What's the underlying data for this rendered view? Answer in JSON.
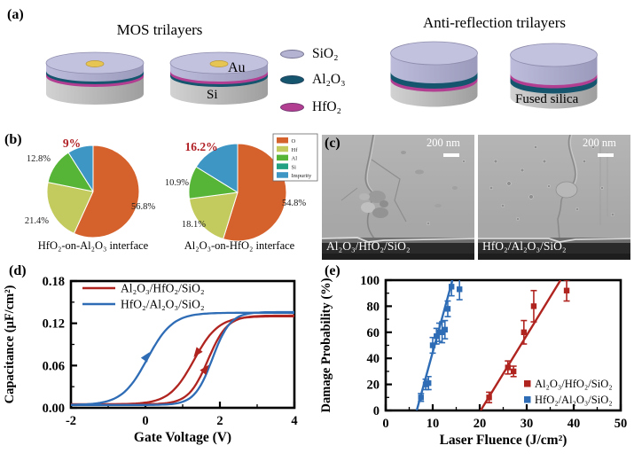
{
  "panels": {
    "a": {
      "label": "(a)",
      "mos_title": "MOS trilayers",
      "ar_title": "Anti-reflection trilayers",
      "au_label": "Au",
      "si_label": "Si",
      "fused_silica_label": "Fused silica",
      "materials": {
        "SiO2": {
          "label": "SiO₂",
          "color": "#b4b3d2",
          "top_color": "#c2c1de"
        },
        "Al2O3": {
          "label": "Al₂O₃",
          "color": "#15566e"
        },
        "HfO2": {
          "label": "HfO₂",
          "color": "#b23e92"
        }
      },
      "substrate_color": "#bdbdbd",
      "au_color": "#e7c553",
      "discs": [
        {
          "id": "mos1",
          "layers": [
            "SiO2",
            "Al2O3",
            "HfO2"
          ],
          "au": true
        },
        {
          "id": "mos2",
          "layers": [
            "SiO2",
            "HfO2",
            "Al2O3"
          ],
          "au": true
        },
        {
          "id": "ar1",
          "layers": [
            "SiO2",
            "Al2O3",
            "HfO2"
          ],
          "au": false
        },
        {
          "id": "ar2",
          "layers": [
            "SiO2",
            "HfO2",
            "Al2O3"
          ],
          "au": false
        }
      ]
    },
    "b": {
      "label": "(b)"
    },
    "c": {
      "label": "(c)",
      "images": [
        {
          "label": "Al₂O₃/HfO₂/SiO₂",
          "scale_label": "200 nm"
        },
        {
          "label": "HfO₂/Al₂O₃/SiO₂",
          "scale_label": "200 nm"
        }
      ]
    },
    "d": {
      "label": "(d)"
    },
    "e": {
      "label": "(e)"
    }
  },
  "chart_data": [
    {
      "id": "pie-hfo2-on-al2o3",
      "type": "pie",
      "title": "HfO₂-on-Al₂O₃ interface",
      "labels": [
        "O",
        "Hf",
        "Al",
        "Impurity"
      ],
      "values": [
        56.8,
        21.4,
        12.8,
        9.0
      ],
      "value_labels": [
        "56.8%",
        "21.4%",
        "12.8%",
        "9%"
      ],
      "colors": [
        "#d5622d",
        "#c3cb5f",
        "#56b436",
        "#3e96c5"
      ],
      "highlight_index": 3,
      "highlight_color": "#b01f24",
      "legend_labels": [
        "O",
        "Hf",
        "Al",
        "Si",
        "Impurity"
      ],
      "legend_colors": [
        "#d5622d",
        "#c3cb5f",
        "#56b436",
        "#23a283",
        "#3e96c5"
      ]
    },
    {
      "id": "pie-al2o3-on-hfo2",
      "type": "pie",
      "title": "Al₂O₃-on-HfO₂ interface",
      "labels": [
        "O",
        "Hf",
        "Al",
        "Impurity"
      ],
      "values": [
        54.8,
        18.1,
        10.9,
        16.2
      ],
      "value_labels": [
        "54.8%",
        "18.1%",
        "10.9%",
        "16.2%"
      ],
      "colors": [
        "#d5622d",
        "#c3cb5f",
        "#56b436",
        "#3e96c5"
      ],
      "highlight_index": 3,
      "highlight_color": "#b01f24"
    },
    {
      "id": "cv-hysteresis",
      "type": "line",
      "xlabel": "Gate Voltage (V)",
      "ylabel": "Capacitance (μF/cm²)",
      "xlim": [
        -2,
        4
      ],
      "ylim": [
        0,
        0.18
      ],
      "xticks": [
        -2,
        0,
        2,
        4
      ],
      "xtick_labels": [
        "-2",
        "0",
        "2",
        "4"
      ],
      "yticks": [
        0,
        0.06,
        0.12,
        0.18
      ],
      "ytick_labels": [
        "0.00",
        "0.06",
        "0.12",
        "0.18"
      ],
      "grid": false,
      "legend_position": "top-left",
      "series": [
        {
          "name": "Al₂O₃/HfO₂/SiO₂",
          "color": "#b02420",
          "branches": [
            {
              "v0": 1.3,
              "w": 0.33,
              "cmin": 0.005,
              "cmax": 0.13
            },
            {
              "v0": 1.68,
              "w": 0.26,
              "cmin": 0.005,
              "cmax": 0.131
            }
          ]
        },
        {
          "name": "HfO₂/Al₂O₃/SiO₂",
          "color": "#2e6cb5",
          "branches": [
            {
              "v0": 0.05,
              "w": 0.34,
              "cmin": 0.004,
              "cmax": 0.135
            },
            {
              "v0": 1.8,
              "w": 0.24,
              "cmin": 0.004,
              "cmax": 0.136
            }
          ]
        }
      ],
      "arrows": [
        {
          "x": 0.1,
          "y": 0.078,
          "angle": -55,
          "series": 1
        },
        {
          "x": 1.31,
          "y": 0.073,
          "angle": 128,
          "series": 0
        },
        {
          "x": 1.69,
          "y": 0.06,
          "angle": -52,
          "series": 0
        }
      ]
    },
    {
      "id": "damage-probability",
      "type": "scatter",
      "xlabel": "Laser Fluence (J/cm²)",
      "ylabel": "Damage Probability (%)",
      "xlim": [
        0,
        50
      ],
      "ylim": [
        0,
        100
      ],
      "xticks": [
        0,
        10,
        20,
        30,
        40,
        50
      ],
      "yticks": [
        0,
        20,
        40,
        60,
        80,
        100
      ],
      "grid": false,
      "legend_position": "right-bottom",
      "series": [
        {
          "name": "Al₂O₃/HfO₂/SiO₂",
          "color": "#b02420",
          "points": [
            [
              22,
              10,
              4
            ],
            [
              26,
              33,
              5
            ],
            [
              27.2,
              30,
              4
            ],
            [
              29.4,
              60,
              9
            ],
            [
              31.5,
              80,
              12
            ],
            [
              38.5,
              92,
              8
            ]
          ],
          "fit_line": [
            [
              20.2,
              0
            ],
            [
              37.2,
              100
            ]
          ]
        },
        {
          "name": "HfO₂/Al₂O₃/SiO₂",
          "color": "#2e6cb5",
          "points": [
            [
              7.5,
              10,
              3
            ],
            [
              8.5,
              20,
              4
            ],
            [
              9.1,
              21,
              5
            ],
            [
              10,
              50,
              6
            ],
            [
              10.8,
              57,
              6
            ],
            [
              11.4,
              60,
              7
            ],
            [
              12,
              60,
              8
            ],
            [
              12.6,
              62,
              7
            ],
            [
              13.2,
              78,
              6
            ],
            [
              14,
              95,
              7
            ],
            [
              15.7,
              93,
              8
            ]
          ],
          "fit_line": [
            [
              6.6,
              0
            ],
            [
              14.2,
              100
            ]
          ]
        }
      ]
    }
  ]
}
